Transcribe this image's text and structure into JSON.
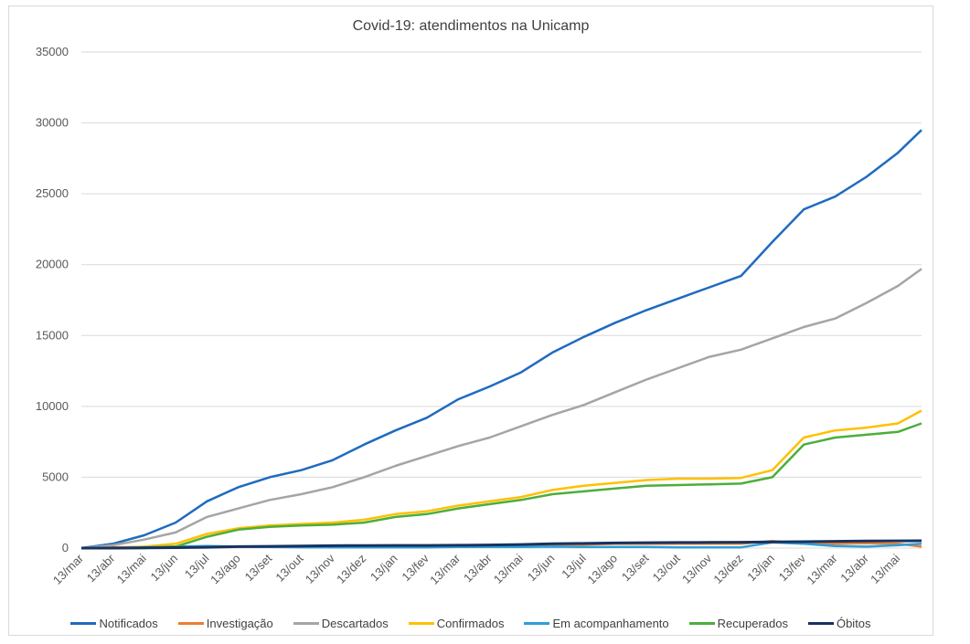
{
  "chart_data": {
    "type": "line",
    "title": "Covid-19: atendimentos  na Unicamp",
    "xlabel": "",
    "ylabel": "",
    "ylim": [
      0,
      35000
    ],
    "yticks": [
      0,
      5000,
      10000,
      15000,
      20000,
      25000,
      30000,
      35000
    ],
    "grid": true,
    "legend_position": "bottom",
    "categories": [
      "13/mar",
      "13/abr",
      "13/mai",
      "13/jun",
      "13/jul",
      "13/ago",
      "13/set",
      "13/out",
      "13/nov",
      "13/dez",
      "13/jan",
      "13/fev",
      "13/mar",
      "13/abr",
      "13/mai",
      "13/jun",
      "13/jul",
      "13/ago",
      "13/set",
      "13/out",
      "13/nov",
      "13/dez",
      "13/jan",
      "13/fev",
      "13/mar",
      "13/abr",
      "13/mai"
    ],
    "x_end": 26.75,
    "series": [
      {
        "name": "Notificados",
        "color": "#1f6bbf",
        "points": [
          [
            0,
            0
          ],
          [
            1,
            300
          ],
          [
            2,
            900
          ],
          [
            3,
            1800
          ],
          [
            4,
            3300
          ],
          [
            5,
            4300
          ],
          [
            6,
            5000
          ],
          [
            7,
            5500
          ],
          [
            8,
            6200
          ],
          [
            9,
            7300
          ],
          [
            10,
            8300
          ],
          [
            11,
            9200
          ],
          [
            12,
            10500
          ],
          [
            13,
            11400
          ],
          [
            14,
            12400
          ],
          [
            15,
            13800
          ],
          [
            16,
            14900
          ],
          [
            17,
            15900
          ],
          [
            18,
            16800
          ],
          [
            19,
            17600
          ],
          [
            20,
            18400
          ],
          [
            21,
            19200
          ],
          [
            22,
            21600
          ],
          [
            23,
            23900
          ],
          [
            24,
            24800
          ],
          [
            25,
            26200
          ],
          [
            26,
            27900
          ],
          [
            26.75,
            29500
          ]
        ]
      },
      {
        "name": "Investigação",
        "color": "#ed7d31",
        "points": [
          [
            0,
            0
          ],
          [
            1,
            50
          ],
          [
            2,
            80
          ],
          [
            3,
            100
          ],
          [
            4,
            100
          ],
          [
            5,
            100
          ],
          [
            6,
            100
          ],
          [
            7,
            100
          ],
          [
            8,
            120
          ],
          [
            9,
            150
          ],
          [
            10,
            150
          ],
          [
            11,
            150
          ],
          [
            12,
            180
          ],
          [
            13,
            200
          ],
          [
            14,
            200
          ],
          [
            15,
            250
          ],
          [
            16,
            250
          ],
          [
            17,
            300
          ],
          [
            18,
            300
          ],
          [
            19,
            300
          ],
          [
            20,
            300
          ],
          [
            21,
            300
          ],
          [
            22,
            500
          ],
          [
            23,
            300
          ],
          [
            24,
            300
          ],
          [
            25,
            350
          ],
          [
            26,
            300
          ],
          [
            26.75,
            100
          ]
        ]
      },
      {
        "name": "Descartados",
        "color": "#a5a5a5",
        "points": [
          [
            0,
            0
          ],
          [
            1,
            200
          ],
          [
            2,
            600
          ],
          [
            3,
            1100
          ],
          [
            4,
            2200
          ],
          [
            5,
            2800
          ],
          [
            6,
            3400
          ],
          [
            7,
            3800
          ],
          [
            8,
            4300
          ],
          [
            9,
            5000
          ],
          [
            10,
            5800
          ],
          [
            11,
            6500
          ],
          [
            12,
            7200
          ],
          [
            13,
            7800
          ],
          [
            14,
            8600
          ],
          [
            15,
            9400
          ],
          [
            16,
            10100
          ],
          [
            17,
            11000
          ],
          [
            18,
            11900
          ],
          [
            19,
            12700
          ],
          [
            20,
            13500
          ],
          [
            21,
            14000
          ],
          [
            22,
            14800
          ],
          [
            23,
            15600
          ],
          [
            24,
            16200
          ],
          [
            25,
            17300
          ],
          [
            26,
            18500
          ],
          [
            26.75,
            19700
          ]
        ]
      },
      {
        "name": "Confirmados",
        "color": "#ffc000",
        "points": [
          [
            0,
            0
          ],
          [
            1,
            0
          ],
          [
            2,
            100
          ],
          [
            3,
            300
          ],
          [
            4,
            1000
          ],
          [
            5,
            1400
          ],
          [
            6,
            1600
          ],
          [
            7,
            1700
          ],
          [
            8,
            1800
          ],
          [
            9,
            2000
          ],
          [
            10,
            2400
          ],
          [
            11,
            2600
          ],
          [
            12,
            3000
          ],
          [
            13,
            3300
          ],
          [
            14,
            3600
          ],
          [
            15,
            4100
          ],
          [
            16,
            4400
          ],
          [
            17,
            4600
          ],
          [
            18,
            4800
          ],
          [
            19,
            4900
          ],
          [
            20,
            4900
          ],
          [
            21,
            4950
          ],
          [
            22,
            5500
          ],
          [
            23,
            7800
          ],
          [
            24,
            8300
          ],
          [
            25,
            8500
          ],
          [
            26,
            8800
          ],
          [
            26.75,
            9700
          ]
        ]
      },
      {
        "name": "Em acompanhamento",
        "color": "#2e9fd8",
        "points": [
          [
            0,
            0
          ],
          [
            1,
            0
          ],
          [
            2,
            50
          ],
          [
            3,
            100
          ],
          [
            4,
            150
          ],
          [
            5,
            100
          ],
          [
            6,
            80
          ],
          [
            7,
            60
          ],
          [
            8,
            50
          ],
          [
            9,
            50
          ],
          [
            10,
            50
          ],
          [
            11,
            50
          ],
          [
            12,
            80
          ],
          [
            13,
            80
          ],
          [
            14,
            80
          ],
          [
            15,
            100
          ],
          [
            16,
            80
          ],
          [
            17,
            80
          ],
          [
            18,
            80
          ],
          [
            19,
            50
          ],
          [
            20,
            50
          ],
          [
            21,
            50
          ],
          [
            22,
            400
          ],
          [
            23,
            300
          ],
          [
            24,
            150
          ],
          [
            25,
            100
          ],
          [
            26,
            200
          ],
          [
            26.75,
            300
          ]
        ]
      },
      {
        "name": "Recuperados",
        "color": "#4cae3b",
        "points": [
          [
            0,
            0
          ],
          [
            1,
            0
          ],
          [
            2,
            0
          ],
          [
            3,
            100
          ],
          [
            4,
            800
          ],
          [
            5,
            1300
          ],
          [
            6,
            1500
          ],
          [
            7,
            1600
          ],
          [
            8,
            1650
          ],
          [
            9,
            1800
          ],
          [
            10,
            2200
          ],
          [
            11,
            2400
          ],
          [
            12,
            2800
          ],
          [
            13,
            3100
          ],
          [
            14,
            3400
          ],
          [
            15,
            3800
          ],
          [
            16,
            4000
          ],
          [
            17,
            4200
          ],
          [
            18,
            4400
          ],
          [
            19,
            4450
          ],
          [
            20,
            4500
          ],
          [
            21,
            4550
          ],
          [
            22,
            5000
          ],
          [
            23,
            7300
          ],
          [
            24,
            7800
          ],
          [
            25,
            8000
          ],
          [
            26,
            8200
          ],
          [
            26.75,
            8800
          ]
        ]
      },
      {
        "name": "Óbitos",
        "color": "#17325f",
        "points": [
          [
            0,
            0
          ],
          [
            1,
            0
          ],
          [
            2,
            10
          ],
          [
            3,
            30
          ],
          [
            4,
            60
          ],
          [
            5,
            100
          ],
          [
            6,
            120
          ],
          [
            7,
            150
          ],
          [
            8,
            170
          ],
          [
            9,
            180
          ],
          [
            10,
            190
          ],
          [
            11,
            190
          ],
          [
            12,
            200
          ],
          [
            13,
            220
          ],
          [
            14,
            250
          ],
          [
            15,
            300
          ],
          [
            16,
            330
          ],
          [
            17,
            360
          ],
          [
            18,
            380
          ],
          [
            19,
            390
          ],
          [
            20,
            400
          ],
          [
            21,
            410
          ],
          [
            22,
            430
          ],
          [
            23,
            450
          ],
          [
            24,
            480
          ],
          [
            25,
            500
          ],
          [
            26,
            510
          ],
          [
            26.75,
            515
          ]
        ]
      }
    ]
  }
}
